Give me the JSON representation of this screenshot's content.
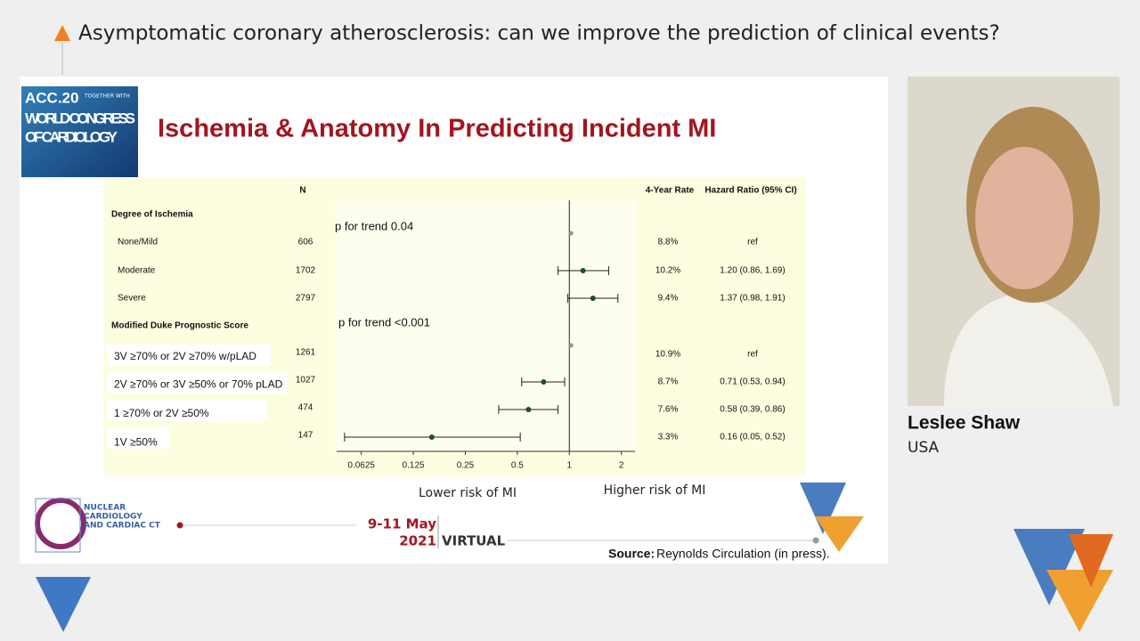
{
  "header": {
    "title": "Asymptomatic coronary atherosclerosis: can we improve the prediction of clinical events?"
  },
  "slide": {
    "logo": {
      "lines": [
        "ACC.20",
        "WORLD CONGRESS",
        "OF CARDIOLOGY"
      ],
      "tag": "TOGETHER WITH"
    },
    "title": "Ischemia & Anatomy In Predicting Incident MI",
    "table": {
      "columns": [
        "N",
        "4-Year Rate",
        "Hazard Ratio (95% CI)"
      ],
      "groups": [
        {
          "name": "Degree of Ischemia",
          "trend": "p for trend 0.04",
          "rows": [
            {
              "label": "None/Mild",
              "n": 606,
              "rate": "8.8%",
              "hr_text": "ref",
              "hr": 1
            },
            {
              "label": "Moderate",
              "n": 1702,
              "rate": "10.2%",
              "hr_text": "1.20 (0.86, 1.69)",
              "hr": 1.2,
              "ci": [
                0.86,
                1.69
              ]
            },
            {
              "label": "Severe",
              "n": 2797,
              "rate": "9.4%",
              "hr_text": "1.37 (0.98, 1.91)",
              "hr": 1.37,
              "ci": [
                0.98,
                1.91
              ]
            }
          ]
        },
        {
          "name": "Modified Duke Prognostic Score",
          "trend": "p for trend <0.001",
          "rows": [
            {
              "label": "3V ≥70% or 2V ≥70% w/pLAD",
              "n": 1261,
              "rate": "10.9%",
              "hr_text": "ref",
              "hr": 1
            },
            {
              "label": "2V ≥70% or 3V ≥50% or 70% pLAD",
              "n": 1027,
              "rate": "8.7%",
              "hr_text": "0.71 (0.53, 0.94)",
              "hr": 0.71,
              "ci": [
                0.53,
                0.94
              ]
            },
            {
              "label": "1 ≥70% or 2V ≥50%",
              "n": 474,
              "rate": "7.6%",
              "hr_text": "0.58 (0.39, 0.86)",
              "hr": 0.58,
              "ci": [
                0.39,
                0.86
              ]
            },
            {
              "label": "1V ≥50%",
              "n": 147,
              "rate": "3.3%",
              "hr_text": "0.16 (0.05, 0.52)",
              "hr": 0.16,
              "ci": [
                0.05,
                0.52
              ]
            }
          ]
        }
      ]
    },
    "axis": {
      "log": true,
      "xlim": [
        0.045,
        2.4
      ],
      "xticks": [
        0.0625,
        0.125,
        0.25,
        0.5,
        1,
        2
      ],
      "left_label": "Lower risk of MI",
      "right_label": "Higher risk of MI"
    },
    "footer": {
      "logo_lines": [
        "NUCLEAR",
        "CARDIOLOGY",
        "AND CARDIAC CT"
      ],
      "dates": "9-11 May",
      "year": "2021",
      "mode": "VIRTUAL",
      "source_label": "Source:",
      "source": "Reynolds Circulation (in press)."
    }
  },
  "speaker": {
    "name": "Leslee Shaw",
    "country": "USA"
  }
}
